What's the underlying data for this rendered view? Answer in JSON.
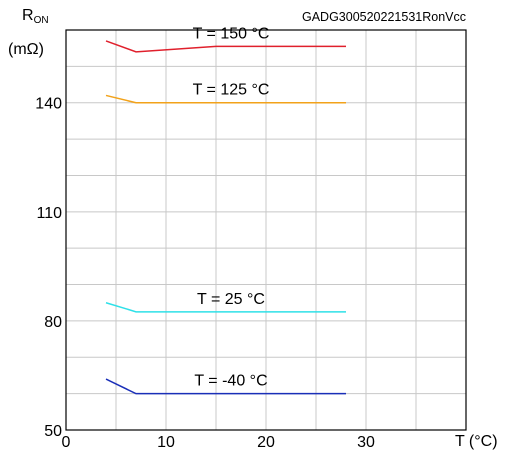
{
  "chart_data": {
    "type": "line",
    "title": "",
    "code": "GADG300520221531RonVcc",
    "ylabel_main": "R",
    "ylabel_sub": "ON",
    "yunit": "(mΩ)",
    "xlabel": "T (°C)",
    "xlim": [
      0,
      40
    ],
    "ylim": [
      50,
      160
    ],
    "x_ticks": [
      0,
      10,
      20,
      30
    ],
    "y_ticks": [
      50,
      80,
      110,
      140
    ],
    "grid": true,
    "series": [
      {
        "name": "T = 150 °C",
        "color": "#e0202c",
        "x": [
          4,
          7,
          15,
          28
        ],
        "y": [
          157,
          154,
          155.5,
          155.5
        ]
      },
      {
        "name": "T = 125 °C",
        "color": "#f2a21a",
        "x": [
          4,
          7,
          28
        ],
        "y": [
          142,
          140,
          140
        ]
      },
      {
        "name": "T = 25 °C",
        "color": "#2ee0e8",
        "x": [
          4,
          7,
          28
        ],
        "y": [
          85,
          82.5,
          82.5
        ]
      },
      {
        "name": "T = -40 °C",
        "color": "#1a2fb8",
        "x": [
          4,
          7,
          28
        ],
        "y": [
          64,
          60,
          60
        ]
      }
    ]
  }
}
